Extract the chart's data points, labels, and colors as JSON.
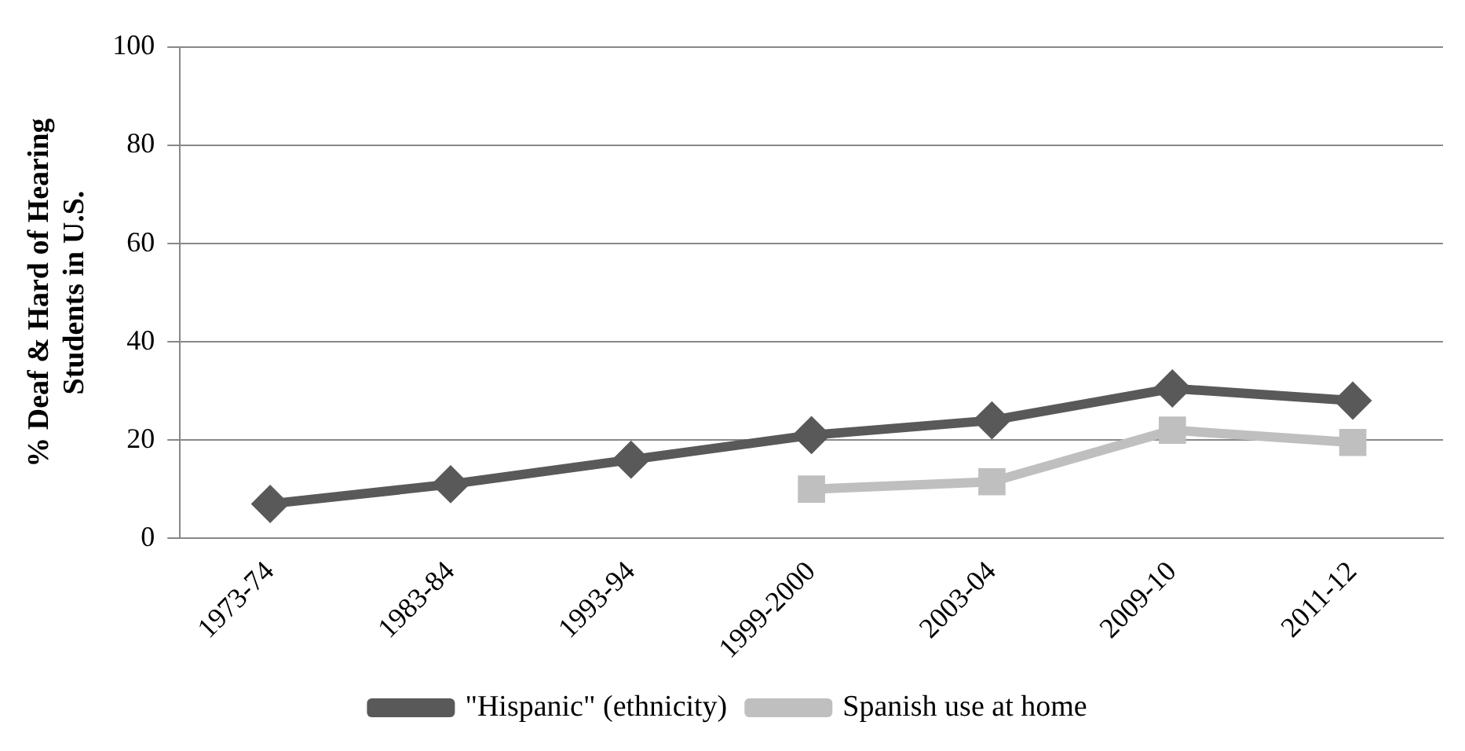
{
  "chart_data": {
    "type": "line",
    "ylabel": "% Deaf & Hard of Hearing Students in U.S.",
    "categories": [
      "1973-74",
      "1983-84",
      "1993-94",
      "1999-2000",
      "2003-04",
      "2009-10",
      "2011-12"
    ],
    "series": [
      {
        "name": "\"Hispanic\" (ethnicity)",
        "color": "#595959",
        "marker": "diamond",
        "values": [
          7,
          11,
          16,
          21,
          24,
          30.5,
          28
        ]
      },
      {
        "name": "Spanish use at home",
        "color": "#bfbfbf",
        "marker": "square",
        "values": [
          null,
          null,
          null,
          10,
          11.5,
          22,
          19.5
        ]
      }
    ],
    "ylim": [
      0,
      100
    ],
    "yticks": [
      0,
      20,
      40,
      60,
      80,
      100
    ],
    "grid": "y",
    "legend": "bottom",
    "line_style": "solid"
  }
}
